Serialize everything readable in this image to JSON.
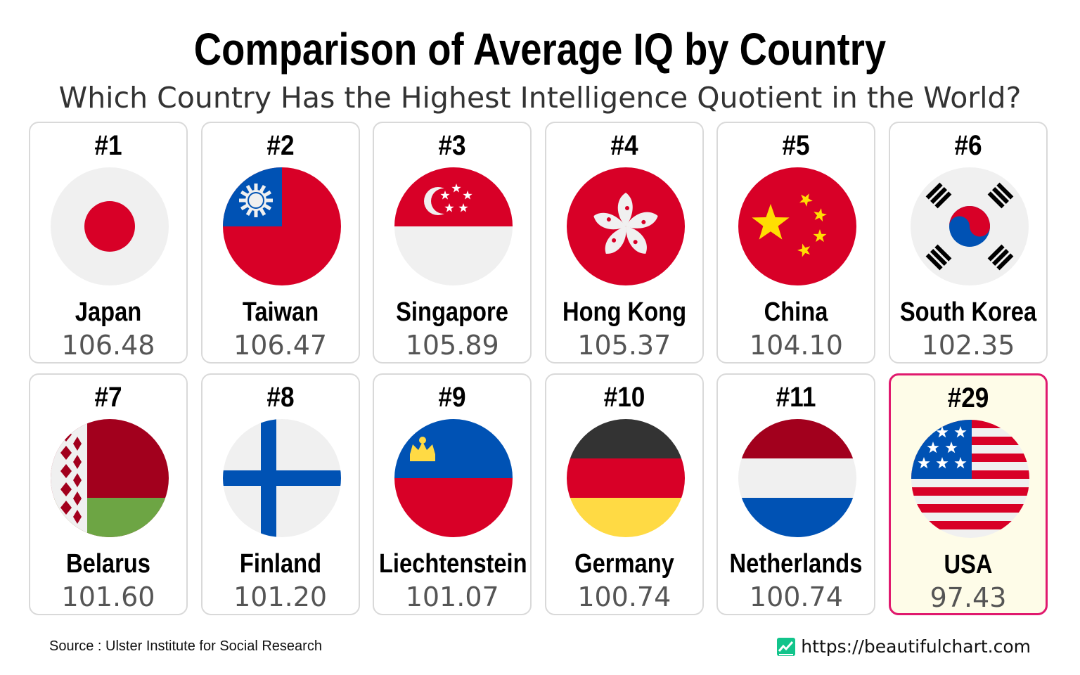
{
  "title": "Comparison of Average IQ by Country",
  "subtitle": "Which Country Has the Highest Intelligence Quotient in the World?",
  "source": "Source : Ulster Institute for Social Research",
  "website": "https://beautifulchart.com",
  "highlight_color": "#e0196e",
  "chart_data": {
    "type": "table",
    "title": "Comparison of Average IQ by Country",
    "subtitle": "Which Country Has the Highest Intelligence Quotient in the World?",
    "columns": [
      "rank",
      "country",
      "average_iq"
    ],
    "rows": [
      {
        "rank": "#1",
        "country": "Japan",
        "value": "106.48",
        "flag": "japan-flag-icon"
      },
      {
        "rank": "#2",
        "country": "Taiwan",
        "value": "106.47",
        "flag": "taiwan-flag-icon"
      },
      {
        "rank": "#3",
        "country": "Singapore",
        "value": "105.89",
        "flag": "singapore-flag-icon"
      },
      {
        "rank": "#4",
        "country": "Hong Kong",
        "value": "105.37",
        "flag": "hong-kong-flag-icon"
      },
      {
        "rank": "#5",
        "country": "China",
        "value": "104.10",
        "flag": "china-flag-icon"
      },
      {
        "rank": "#6",
        "country": "South Korea",
        "value": "102.35",
        "flag": "south-korea-flag-icon"
      },
      {
        "rank": "#7",
        "country": "Belarus",
        "value": "101.60",
        "flag": "belarus-flag-icon"
      },
      {
        "rank": "#8",
        "country": "Finland",
        "value": "101.20",
        "flag": "finland-flag-icon"
      },
      {
        "rank": "#9",
        "country": "Liechtenstein",
        "value": "101.07",
        "flag": "liechtenstein-flag-icon"
      },
      {
        "rank": "#10",
        "country": "Germany",
        "value": "100.74",
        "flag": "germany-flag-icon"
      },
      {
        "rank": "#11",
        "country": "Netherlands",
        "value": "100.74",
        "flag": "netherlands-flag-icon"
      },
      {
        "rank": "#29",
        "country": "USA",
        "value": "97.43",
        "flag": "usa-flag-icon",
        "highlighted": true
      }
    ]
  }
}
